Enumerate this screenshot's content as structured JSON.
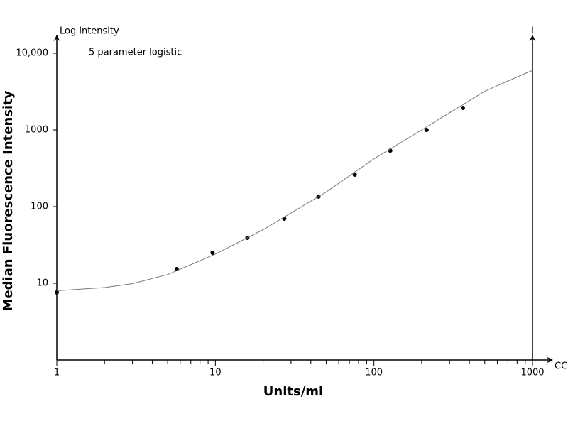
{
  "chart_data": {
    "type": "scatter",
    "y_axis_caption": "Log intensity",
    "annotation": "5 parameter logistic",
    "right_axis_caption": "I",
    "x_axis_caption": "CC",
    "ylabel": "Median Fluorescence Intensity",
    "xlabel": "Units/ml",
    "x_log": true,
    "y_log": true,
    "xlim": [
      1,
      1000
    ],
    "ylim": [
      1,
      10000
    ],
    "xticks": [
      1,
      10,
      100,
      1000
    ],
    "xminor_ticks": [
      2,
      3,
      4,
      5,
      6,
      7,
      8,
      9,
      20,
      30,
      40,
      50,
      60,
      70,
      80,
      90,
      200,
      300,
      400,
      500,
      600,
      700,
      800,
      900
    ],
    "yticks": [
      10,
      100,
      1000,
      {
        "value": 10000,
        "label": "10,000"
      }
    ],
    "series": [
      {
        "color": "#000000",
        "marker": "dot",
        "x": [
          1,
          5.7,
          9.6,
          15.9,
          27.2,
          44.7,
          75.7,
          126.8,
          214.8,
          363.9
        ],
        "values": [
          7.6,
          15.3,
          25,
          39.1,
          69.6,
          135,
          261,
          538,
          1000,
          1936
        ]
      },
      {
        "color": "#777777",
        "marker": "line",
        "x": [
          1,
          2,
          3,
          5,
          10,
          20,
          50,
          100,
          200,
          500,
          1000
        ],
        "values": [
          8,
          8.8,
          9.9,
          13,
          24,
          50,
          155,
          420,
          1000,
          3200,
          6000
        ]
      }
    ]
  }
}
